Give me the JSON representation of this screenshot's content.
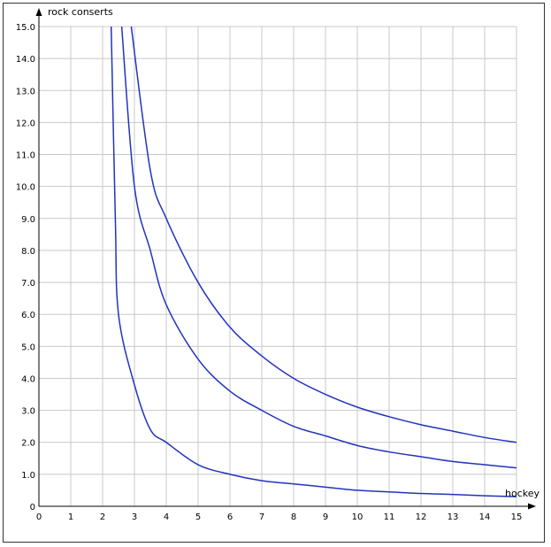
{
  "chart_data": {
    "type": "line",
    "xlabel": "hockey",
    "ylabel": "rock conserts",
    "xlim": [
      0,
      15
    ],
    "ylim": [
      0,
      15
    ],
    "grid": true,
    "x_ticks": [
      "0",
      "1",
      "2",
      "3",
      "4",
      "5",
      "6",
      "7",
      "8",
      "9",
      "10",
      "11",
      "12",
      "13",
      "14",
      "15"
    ],
    "y_ticks": [
      "0",
      "1.0",
      "2.0",
      "3.0",
      "4.0",
      "5.0",
      "6.0",
      "7.0",
      "8.0",
      "9.0",
      "10.0",
      "11.0",
      "12.0",
      "13.0",
      "14.0",
      "15.0"
    ],
    "colors": {
      "line": "#2233bb",
      "grid": "#c8c8c8",
      "axis": "#000000"
    },
    "series": [
      {
        "points": [
          [
            2.27,
            15.0
          ],
          [
            2.4,
            9.0
          ],
          [
            2.5,
            6.0
          ],
          [
            3,
            3.8
          ],
          [
            3.5,
            2.4
          ],
          [
            4,
            2.0
          ],
          [
            5,
            1.3
          ],
          [
            6,
            1.0
          ],
          [
            7,
            0.8
          ],
          [
            8,
            0.7
          ],
          [
            9,
            0.6
          ],
          [
            10,
            0.5
          ],
          [
            11,
            0.45
          ],
          [
            12,
            0.4
          ],
          [
            13,
            0.37
          ],
          [
            14,
            0.33
          ],
          [
            15,
            0.3
          ]
        ]
      },
      {
        "points": [
          [
            2.6,
            15.0
          ],
          [
            3,
            10.0
          ],
          [
            3.5,
            8.0
          ],
          [
            4,
            6.3
          ],
          [
            5,
            4.6
          ],
          [
            6,
            3.6
          ],
          [
            7,
            3.0
          ],
          [
            8,
            2.5
          ],
          [
            9,
            2.2
          ],
          [
            10,
            1.9
          ],
          [
            11,
            1.7
          ],
          [
            12,
            1.55
          ],
          [
            13,
            1.4
          ],
          [
            14,
            1.3
          ],
          [
            15,
            1.2
          ]
        ]
      },
      {
        "points": [
          [
            2.9,
            15.0
          ],
          [
            3.5,
            10.5
          ],
          [
            4,
            9.0
          ],
          [
            5,
            7.0
          ],
          [
            6,
            5.6
          ],
          [
            7,
            4.7
          ],
          [
            8,
            4.0
          ],
          [
            9,
            3.5
          ],
          [
            10,
            3.1
          ],
          [
            11,
            2.8
          ],
          [
            12,
            2.55
          ],
          [
            13,
            2.35
          ],
          [
            14,
            2.15
          ],
          [
            15,
            2.0
          ]
        ]
      }
    ]
  }
}
